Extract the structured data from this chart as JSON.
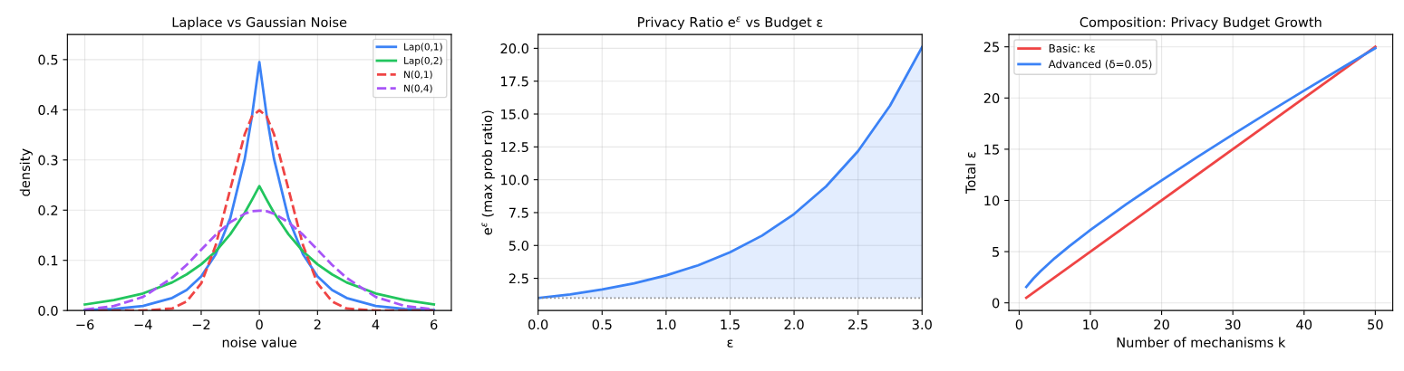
{
  "chart_data": [
    {
      "type": "line",
      "title": "Laplace vs Gaussian Noise",
      "xlabel": "noise value",
      "ylabel": "density",
      "x": [
        -6,
        -5,
        -4,
        -3,
        -2.5,
        -2,
        -1.5,
        -1,
        -0.5,
        -0.25,
        0,
        0.25,
        0.5,
        1,
        1.5,
        2,
        2.5,
        3,
        4,
        5,
        6
      ],
      "series": [
        {
          "name": "Lap(0,1)",
          "color": "#3b82f6",
          "line_style": "solid",
          "values": [
            0.001,
            0.003,
            0.009,
            0.025,
            0.041,
            0.068,
            0.112,
            0.184,
            0.303,
            0.389,
            0.495,
            0.389,
            0.303,
            0.184,
            0.112,
            0.068,
            0.041,
            0.025,
            0.009,
            0.003,
            0.001
          ]
        },
        {
          "name": "Lap(0,2)",
          "color": "#22c55e",
          "line_style": "solid",
          "values": [
            0.012,
            0.021,
            0.034,
            0.056,
            0.072,
            0.092,
            0.118,
            0.152,
            0.195,
            0.221,
            0.248,
            0.221,
            0.195,
            0.152,
            0.118,
            0.092,
            0.072,
            0.056,
            0.034,
            0.021,
            0.012
          ]
        },
        {
          "name": "N(0,1)",
          "color": "#ef4444",
          "line_style": "dashed",
          "values": [
            0,
            0,
            0,
            0.004,
            0.018,
            0.054,
            0.13,
            0.242,
            0.352,
            0.387,
            0.399,
            0.387,
            0.352,
            0.242,
            0.13,
            0.054,
            0.018,
            0.004,
            0,
            0,
            0
          ]
        },
        {
          "name": "N(0,4)",
          "color": "#a855f7",
          "line_style": "dashed",
          "values": [
            0.002,
            0.009,
            0.027,
            0.065,
            0.091,
            0.121,
            0.151,
            0.176,
            0.193,
            0.198,
            0.199,
            0.198,
            0.193,
            0.176,
            0.151,
            0.121,
            0.091,
            0.065,
            0.027,
            0.009,
            0.002
          ]
        }
      ],
      "xlim": [
        -6.6,
        6.6
      ],
      "ylim": [
        0,
        0.55
      ],
      "xticks": [
        {
          "value": -6,
          "label": "−6"
        },
        {
          "value": -4,
          "label": "−4"
        },
        {
          "value": -2,
          "label": "−2"
        },
        0,
        2,
        4,
        6
      ],
      "yticks": [
        {
          "value": 0,
          "label": "0.0"
        },
        0.1,
        0.2,
        0.3,
        0.4,
        0.5
      ],
      "grid": true,
      "legend": "top right"
    },
    {
      "type": "line",
      "title": "Privacy Ratio e$^{ε}$ vs Budget ε",
      "xlabel": "ε",
      "ylabel": "e$^{ε}$ (max prob ratio)",
      "x": [
        0,
        0.25,
        0.5,
        0.75,
        1,
        1.25,
        1.5,
        1.75,
        2,
        2.25,
        2.5,
        2.75,
        3
      ],
      "series": [
        {
          "color": "#3b82f6",
          "values": [
            1,
            1.28,
            1.65,
            2.12,
            2.72,
            3.49,
            4.48,
            5.75,
            7.39,
            9.49,
            12.18,
            15.64,
            20.09
          ],
          "lower": [
            1,
            1,
            1,
            1,
            1,
            1,
            1,
            1,
            1,
            1,
            1,
            1,
            1
          ],
          "upper": [
            1,
            1.28,
            1.65,
            2.12,
            2.72,
            3.49,
            4.48,
            5.75,
            7.39,
            9.49,
            12.18,
            15.64,
            20.09
          ]
        }
      ],
      "xlim": [
        0,
        3
      ],
      "ylim": [
        0.05,
        21.05
      ],
      "xticks": [
        {
          "value": 0,
          "label": "0.0"
        },
        0.5,
        {
          "value": 1,
          "label": "1.0"
        },
        1.5,
        {
          "value": 2,
          "label": "2.0"
        },
        2.5,
        {
          "value": 3,
          "label": "3.0"
        }
      ],
      "yticks": [
        2.5,
        {
          "value": 5,
          "label": "5.0"
        },
        7.5,
        {
          "value": 10,
          "label": "10.0"
        },
        12.5,
        {
          "value": 15,
          "label": "15.0"
        },
        17.5,
        {
          "value": 20,
          "label": "20.0"
        }
      ],
      "ref_lines": [
        {
          "axis": "y",
          "value": 1,
          "color": "#888888",
          "line_style": "dotted"
        }
      ],
      "grid": true
    },
    {
      "type": "line",
      "title": "Composition: Privacy Budget Growth",
      "xlabel": "Number of mechanisms k",
      "ylabel": "Total ε",
      "series": [
        {
          "name": "Basic: kε",
          "color": "#ef4444",
          "x": [
            1,
            50
          ],
          "values": [
            0.5,
            25
          ]
        },
        {
          "name": "Advanced (δ=0.05)",
          "color": "#3b82f6",
          "x": [
            1,
            2,
            3,
            5,
            7,
            10,
            15,
            20,
            25,
            30,
            35,
            40,
            45,
            50
          ],
          "values": [
            1.55,
            2.38,
            3.09,
            4.36,
            5.51,
            7.11,
            9.61,
            11.96,
            14.23,
            16.44,
            18.6,
            20.72,
            22.81,
            24.87
          ]
        }
      ],
      "xlim": [
        -1.45,
        52.45
      ],
      "ylim": [
        -0.75,
        26.2
      ],
      "xticks": [
        0,
        10,
        20,
        30,
        40,
        50
      ],
      "yticks": [
        0,
        5,
        10,
        15,
        20,
        25
      ],
      "grid": true,
      "legend": "top left"
    }
  ]
}
